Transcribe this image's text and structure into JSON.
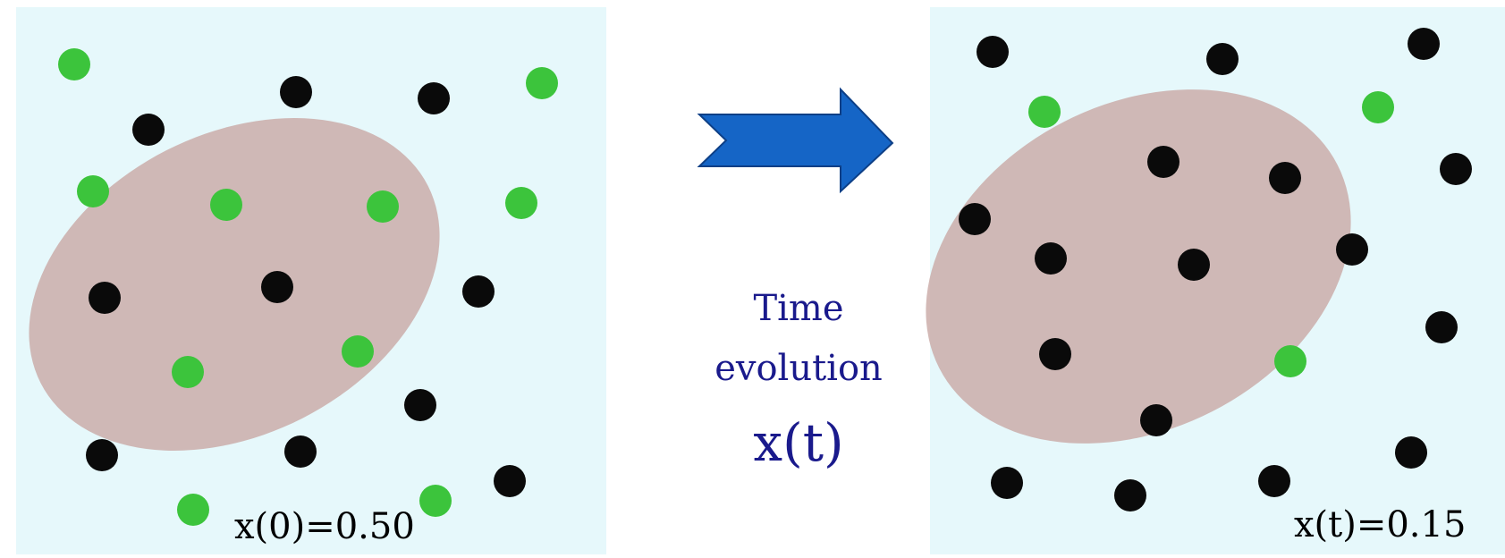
{
  "colors": {
    "panel_bg": "#e6f8fb",
    "ellipse_fill": "#c9a9a6",
    "green": "#3cc43c",
    "black": "#0a0a0a",
    "arrow_fill": "#1565c6",
    "arrow_stroke": "#0d3f86",
    "label_text": "#000000",
    "evolution_text": "#1a1a8c"
  },
  "evolution": {
    "line1": "Time",
    "line2": "evolution",
    "formula": "x(t)"
  },
  "panels": [
    {
      "label": "x(0)=0.50",
      "green_count": 10,
      "black_count": 10
    },
    {
      "label": "x(t)=0.15",
      "green_count": 3,
      "black_count": 17
    }
  ]
}
